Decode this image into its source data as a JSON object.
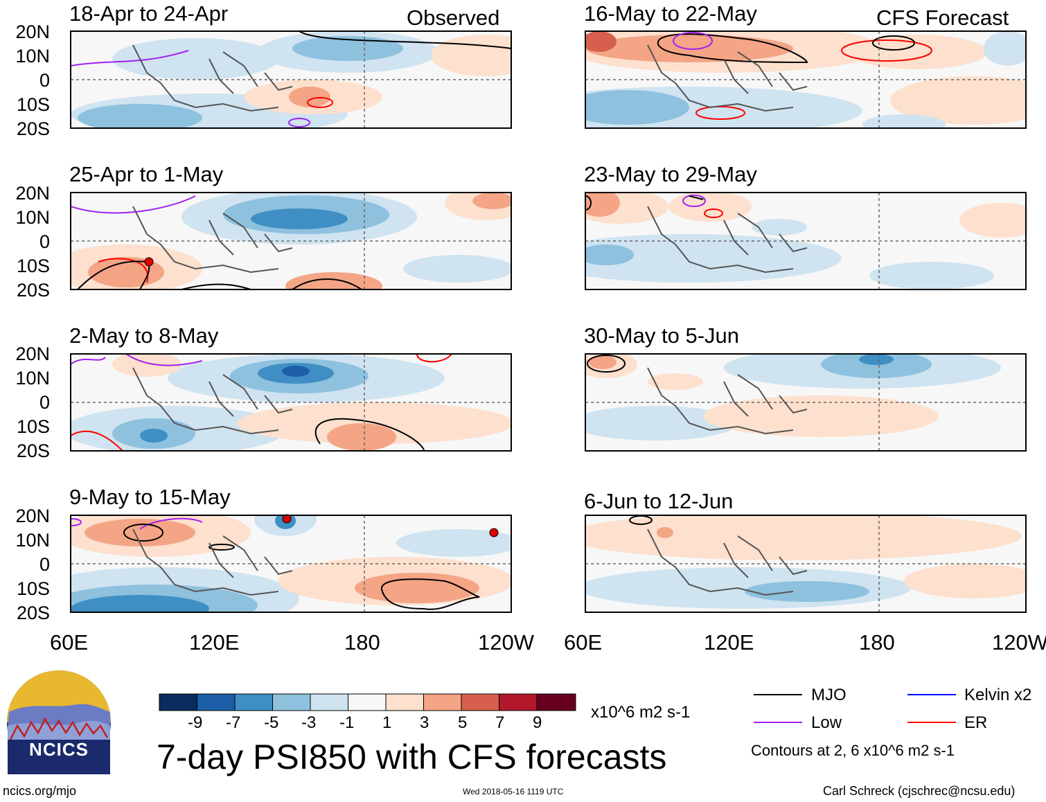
{
  "panels": [
    {
      "title": "18-Apr to 24-Apr",
      "tag": "Observed"
    },
    {
      "title": "25-Apr to 1-May"
    },
    {
      "title": "2-May to 8-May"
    },
    {
      "title": "9-May to 15-May"
    },
    {
      "title": "16-May to 22-May",
      "tag": "CFS Forecast"
    },
    {
      "title": "23-May to 29-May"
    },
    {
      "title": "30-May to 5-Jun"
    },
    {
      "title": "6-Jun to 12-Jun"
    }
  ],
  "lat_labels": [
    "20N",
    "10N",
    "0",
    "10S",
    "20S"
  ],
  "lon_labels": [
    "60E",
    "120E",
    "180",
    "120W"
  ],
  "colorbar": {
    "colors": [
      "#0a2c5e",
      "#1c5fa8",
      "#3f8fc4",
      "#8ec1de",
      "#cfe3f0",
      "#f7f7f7",
      "#fde0cd",
      "#f3a585",
      "#d6604d",
      "#b2182b",
      "#67001f"
    ],
    "ticks": [
      "-9",
      "-7",
      "-5",
      "-3",
      "-1",
      "1",
      "3",
      "5",
      "7",
      "9"
    ],
    "units": "x10^6 m2 s-1"
  },
  "legend": {
    "items": [
      {
        "name": "MJO",
        "color": "#000000"
      },
      {
        "name": "Low",
        "color": "#a020f0"
      },
      {
        "name": "Kelvin x2",
        "color": "#0000ff"
      },
      {
        "name": "ER",
        "color": "#ff0000"
      }
    ],
    "note": "Contours at 2, 6 x10^6 m2 s-1"
  },
  "main_title": "7-day PSI850 with CFS forecasts",
  "logo_text": "NCICS",
  "footer": {
    "url": "ncics.org/mjo",
    "timestamp": "Wed 2018-05-16 1119 UTC",
    "credit": "Carl Schreck (cjschrec@ncsu.edu)"
  }
}
